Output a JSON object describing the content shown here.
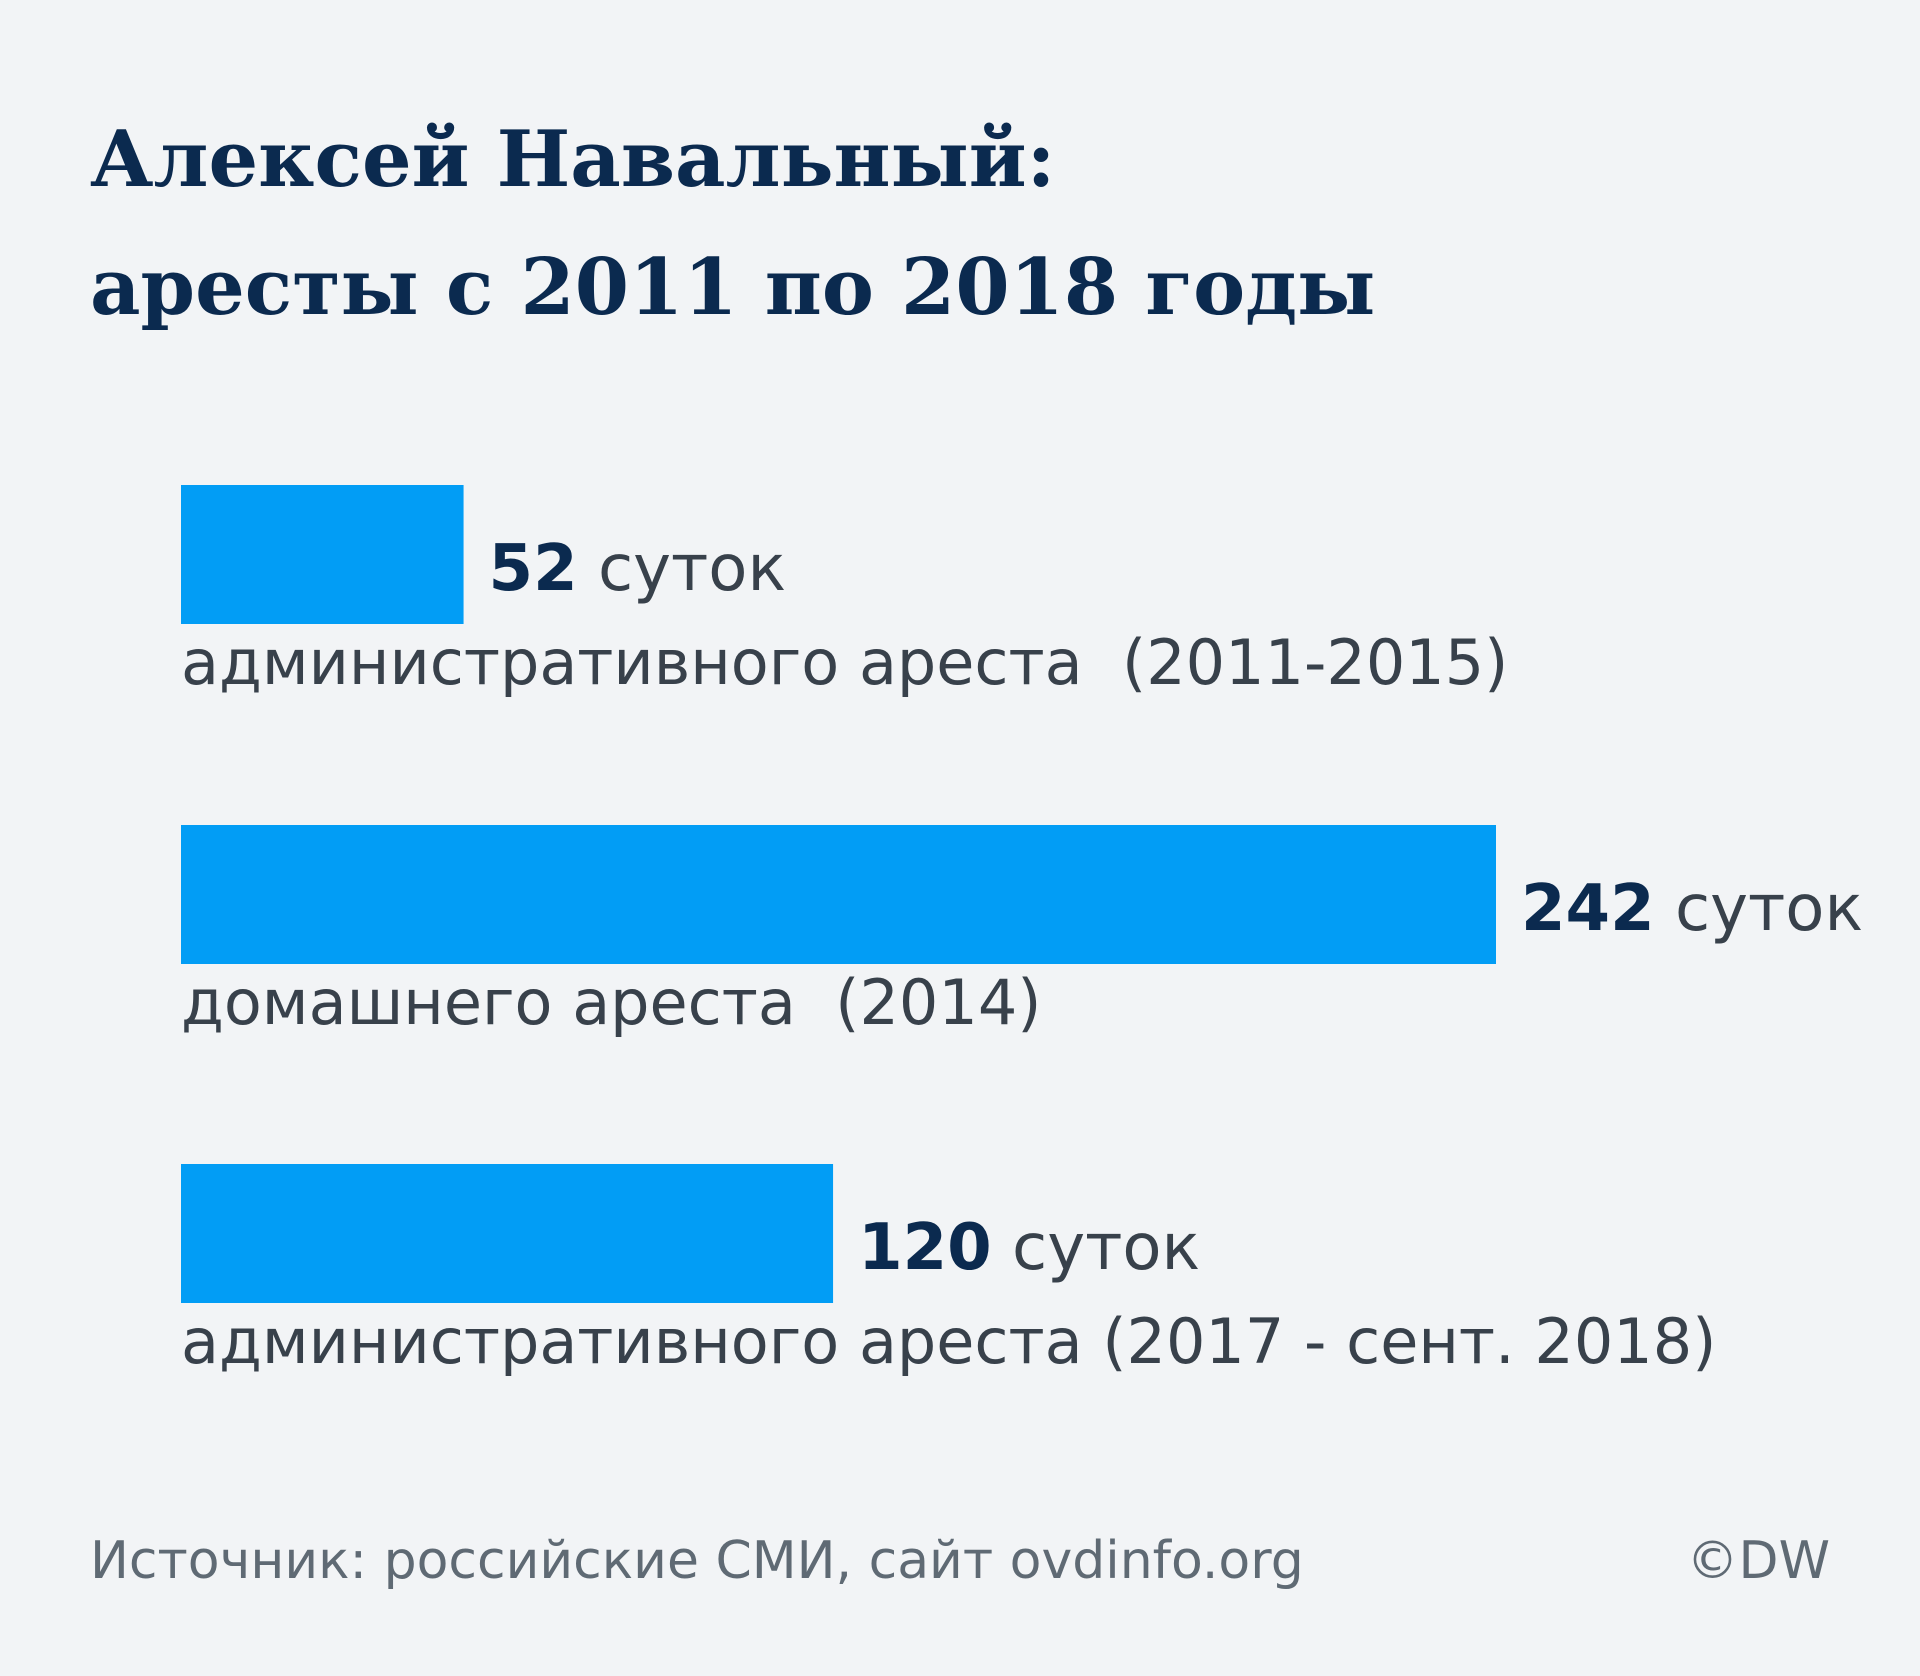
{
  "title_lines": [
    "Алексей Навальный:",
    "аресты с 2011 по 2018 годы"
  ],
  "chart_data": {
    "type": "bar",
    "orientation": "horizontal",
    "title": "Алексей Навальный: аресты с 2011 по 2018 годы",
    "unit": "суток",
    "categories": [
      "административного ареста  (2011-2015)",
      "домашнего ареста  (2014)",
      "административного ареста (2017 - сент. 2018)"
    ],
    "values": [
      52,
      242,
      120
    ],
    "value_labels": [
      "52",
      "242",
      "120"
    ],
    "xlim": [
      0,
      242
    ],
    "grid": false,
    "legend": "none",
    "colors": {
      "bar": "#029df5",
      "value": "#0b2a4f",
      "unit": "#38414b",
      "category": "#38414b"
    }
  },
  "footer": {
    "source": "Источник: российские СМИ, сайт ovdinfo.org",
    "credit": "©DW"
  }
}
